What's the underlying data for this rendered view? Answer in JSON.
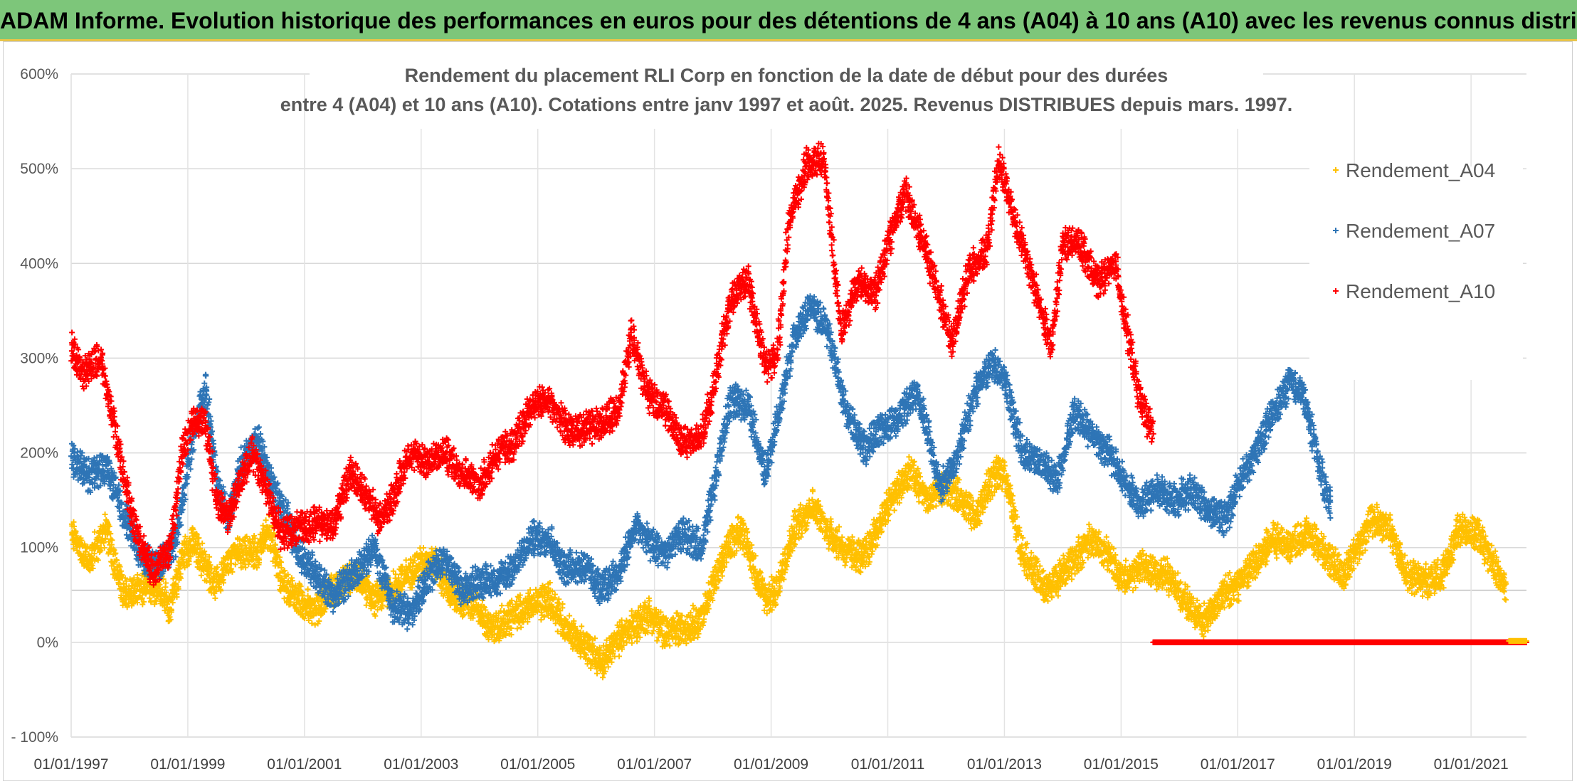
{
  "banner": {
    "title": "ADAM Informe. Evolution historique des performances en euros pour des détentions de 4 ans (A04) à 10 ans (A10) avec les revenus connus distribués"
  },
  "chart_data": {
    "type": "scatter",
    "title_line1": "Rendement du placement RLI Corp en fonction de la date de début pour des durées",
    "title_line2": "entre 4 (A04) et 10 ans (A10). Cotations entre janv 1997 et août. 2025. Revenus DISTRIBUES depuis mars. 1997.",
    "y_tick_labels": [
      "- 100%",
      "0%",
      "100%",
      "200%",
      "300%",
      "400%",
      "500%",
      "600%"
    ],
    "y_tick_values": [
      -100,
      0,
      100,
      200,
      300,
      400,
      500,
      600
    ],
    "ylim": [
      -100,
      600
    ],
    "x_tick_labels": [
      "01/01/1997",
      "01/01/1999",
      "01/01/2001",
      "01/01/2003",
      "01/01/2005",
      "01/01/2007",
      "01/01/2009",
      "01/01/2011",
      "01/01/2013",
      "01/01/2015",
      "01/01/2017",
      "01/01/2019",
      "01/01/2021"
    ],
    "x_tick_years": [
      1997,
      1999,
      2001,
      2003,
      2005,
      2007,
      2009,
      2011,
      2013,
      2015,
      2017,
      2019,
      2021
    ],
    "xlim": [
      1997.0,
      2021.95
    ],
    "grid": true,
    "legend_position": "right",
    "series": [
      {
        "name": "Rendement_A04",
        "color": "#ffc000",
        "marker": "+",
        "x_end": 2021.6,
        "points": [
          [
            1997.0,
            115
          ],
          [
            1997.3,
            85
          ],
          [
            1997.6,
            120
          ],
          [
            1997.9,
            50
          ],
          [
            1998.2,
            55
          ],
          [
            1998.5,
            60
          ],
          [
            1998.7,
            35
          ],
          [
            1998.9,
            90
          ],
          [
            1999.1,
            105
          ],
          [
            1999.3,
            80
          ],
          [
            1999.5,
            60
          ],
          [
            1999.8,
            95
          ],
          [
            2000.2,
            95
          ],
          [
            2000.4,
            120
          ],
          [
            2000.6,
            65
          ],
          [
            2000.9,
            45
          ],
          [
            2001.2,
            35
          ],
          [
            2001.5,
            55
          ],
          [
            2001.9,
            70
          ],
          [
            2002.2,
            45
          ],
          [
            2002.6,
            60
          ],
          [
            2002.9,
            80
          ],
          [
            2003.2,
            90
          ],
          [
            2003.5,
            50
          ],
          [
            2003.9,
            40
          ],
          [
            2004.2,
            15
          ],
          [
            2004.5,
            25
          ],
          [
            2004.9,
            40
          ],
          [
            2005.2,
            45
          ],
          [
            2005.5,
            15
          ],
          [
            2005.8,
            -5
          ],
          [
            2006.1,
            -20
          ],
          [
            2006.4,
            5
          ],
          [
            2006.7,
            20
          ],
          [
            2006.9,
            30
          ],
          [
            2007.2,
            10
          ],
          [
            2007.5,
            15
          ],
          [
            2007.8,
            25
          ],
          [
            2008.0,
            60
          ],
          [
            2008.3,
            105
          ],
          [
            2008.5,
            120
          ],
          [
            2008.7,
            80
          ],
          [
            2008.9,
            45
          ],
          [
            2009.1,
            55
          ],
          [
            2009.4,
            120
          ],
          [
            2009.7,
            145
          ],
          [
            2010.0,
            115
          ],
          [
            2010.3,
            95
          ],
          [
            2010.6,
            90
          ],
          [
            2010.9,
            130
          ],
          [
            2011.1,
            155
          ],
          [
            2011.4,
            180
          ],
          [
            2011.7,
            150
          ],
          [
            2012.0,
            165
          ],
          [
            2012.3,
            150
          ],
          [
            2012.5,
            130
          ],
          [
            2012.8,
            175
          ],
          [
            2013.0,
            180
          ],
          [
            2013.3,
            95
          ],
          [
            2013.7,
            55
          ],
          [
            2014.1,
            80
          ],
          [
            2014.5,
            110
          ],
          [
            2014.8,
            90
          ],
          [
            2015.0,
            65
          ],
          [
            2015.4,
            80
          ],
          [
            2015.8,
            70
          ],
          [
            2016.1,
            45
          ],
          [
            2016.4,
            20
          ],
          [
            2016.7,
            50
          ],
          [
            2017.0,
            60
          ],
          [
            2017.3,
            85
          ],
          [
            2017.6,
            110
          ],
          [
            2017.9,
            100
          ],
          [
            2018.2,
            115
          ],
          [
            2018.5,
            95
          ],
          [
            2018.8,
            70
          ],
          [
            2019.0,
            95
          ],
          [
            2019.3,
            130
          ],
          [
            2019.6,
            120
          ],
          [
            2019.9,
            70
          ],
          [
            2020.2,
            65
          ],
          [
            2020.5,
            70
          ],
          [
            2020.8,
            120
          ],
          [
            2021.1,
            115
          ],
          [
            2021.4,
            80
          ],
          [
            2021.6,
            55
          ]
        ]
      },
      {
        "name": "Rendement_A07",
        "color": "#2e75b6",
        "marker": "+",
        "x_end": 2018.6,
        "points": [
          [
            1997.0,
            195
          ],
          [
            1997.3,
            175
          ],
          [
            1997.6,
            185
          ],
          [
            1997.9,
            135
          ],
          [
            1998.2,
            90
          ],
          [
            1998.5,
            80
          ],
          [
            1998.8,
            110
          ],
          [
            1999.1,
            220
          ],
          [
            1999.3,
            270
          ],
          [
            1999.5,
            170
          ],
          [
            1999.7,
            130
          ],
          [
            1999.9,
            190
          ],
          [
            2000.2,
            215
          ],
          [
            2000.4,
            175
          ],
          [
            2000.7,
            130
          ],
          [
            2000.9,
            95
          ],
          [
            2001.2,
            70
          ],
          [
            2001.5,
            50
          ],
          [
            2001.9,
            75
          ],
          [
            2002.2,
            100
          ],
          [
            2002.5,
            40
          ],
          [
            2002.8,
            30
          ],
          [
            2003.1,
            65
          ],
          [
            2003.4,
            90
          ],
          [
            2003.7,
            55
          ],
          [
            2004.0,
            65
          ],
          [
            2004.3,
            65
          ],
          [
            2004.6,
            80
          ],
          [
            2004.9,
            110
          ],
          [
            2005.2,
            110
          ],
          [
            2005.4,
            80
          ],
          [
            2005.8,
            80
          ],
          [
            2006.1,
            55
          ],
          [
            2006.4,
            75
          ],
          [
            2006.7,
            125
          ],
          [
            2006.9,
            105
          ],
          [
            2007.2,
            95
          ],
          [
            2007.5,
            115
          ],
          [
            2007.8,
            100
          ],
          [
            2008.0,
            160
          ],
          [
            2008.3,
            255
          ],
          [
            2008.6,
            250
          ],
          [
            2008.9,
            180
          ],
          [
            2009.1,
            230
          ],
          [
            2009.4,
            325
          ],
          [
            2009.7,
            355
          ],
          [
            2010.0,
            325
          ],
          [
            2010.3,
            240
          ],
          [
            2010.6,
            205
          ],
          [
            2010.9,
            225
          ],
          [
            2011.2,
            240
          ],
          [
            2011.5,
            265
          ],
          [
            2011.7,
            220
          ],
          [
            2011.9,
            160
          ],
          [
            2012.2,
            200
          ],
          [
            2012.5,
            265
          ],
          [
            2012.8,
            295
          ],
          [
            2013.0,
            280
          ],
          [
            2013.3,
            200
          ],
          [
            2013.6,
            190
          ],
          [
            2013.9,
            170
          ],
          [
            2014.2,
            245
          ],
          [
            2014.5,
            220
          ],
          [
            2014.8,
            200
          ],
          [
            2015.0,
            175
          ],
          [
            2015.3,
            145
          ],
          [
            2015.6,
            160
          ],
          [
            2015.9,
            150
          ],
          [
            2016.2,
            160
          ],
          [
            2016.5,
            140
          ],
          [
            2016.8,
            130
          ],
          [
            2017.0,
            165
          ],
          [
            2017.3,
            200
          ],
          [
            2017.6,
            240
          ],
          [
            2017.9,
            275
          ],
          [
            2018.1,
            265
          ],
          [
            2018.3,
            215
          ],
          [
            2018.5,
            160
          ],
          [
            2018.6,
            145
          ]
        ]
      },
      {
        "name": "Rendement_A10",
        "color": "#ff0000",
        "marker": "+",
        "x_end": 2015.55,
        "points": [
          [
            1997.0,
            310
          ],
          [
            1997.2,
            285
          ],
          [
            1997.5,
            300
          ],
          [
            1997.7,
            240
          ],
          [
            1997.9,
            175
          ],
          [
            1998.1,
            120
          ],
          [
            1998.4,
            75
          ],
          [
            1998.7,
            100
          ],
          [
            1998.9,
            200
          ],
          [
            1999.1,
            235
          ],
          [
            1999.3,
            230
          ],
          [
            1999.5,
            150
          ],
          [
            1999.7,
            130
          ],
          [
            1999.9,
            170
          ],
          [
            2000.1,
            200
          ],
          [
            2000.3,
            170
          ],
          [
            2000.6,
            115
          ],
          [
            2000.9,
            120
          ],
          [
            2001.2,
            125
          ],
          [
            2001.5,
            125
          ],
          [
            2001.8,
            180
          ],
          [
            2002.0,
            160
          ],
          [
            2002.3,
            130
          ],
          [
            2002.5,
            150
          ],
          [
            2002.8,
            200
          ],
          [
            2003.1,
            190
          ],
          [
            2003.4,
            200
          ],
          [
            2003.7,
            180
          ],
          [
            2004.0,
            165
          ],
          [
            2004.3,
            200
          ],
          [
            2004.6,
            210
          ],
          [
            2004.9,
            250
          ],
          [
            2005.2,
            255
          ],
          [
            2005.5,
            225
          ],
          [
            2005.8,
            225
          ],
          [
            2006.1,
            230
          ],
          [
            2006.4,
            250
          ],
          [
            2006.6,
            325
          ],
          [
            2006.9,
            260
          ],
          [
            2007.2,
            245
          ],
          [
            2007.5,
            210
          ],
          [
            2007.8,
            215
          ],
          [
            2008.0,
            265
          ],
          [
            2008.3,
            360
          ],
          [
            2008.6,
            385
          ],
          [
            2008.9,
            290
          ],
          [
            2009.1,
            300
          ],
          [
            2009.3,
            440
          ],
          [
            2009.6,
            505
          ],
          [
            2009.9,
            510
          ],
          [
            2010.2,
            330
          ],
          [
            2010.5,
            380
          ],
          [
            2010.8,
            370
          ],
          [
            2011.0,
            420
          ],
          [
            2011.3,
            475
          ],
          [
            2011.6,
            425
          ],
          [
            2011.9,
            360
          ],
          [
            2012.1,
            315
          ],
          [
            2012.4,
            395
          ],
          [
            2012.7,
            415
          ],
          [
            2012.9,
            510
          ],
          [
            2013.2,
            440
          ],
          [
            2013.5,
            380
          ],
          [
            2013.8,
            310
          ],
          [
            2014.0,
            420
          ],
          [
            2014.3,
            420
          ],
          [
            2014.6,
            380
          ],
          [
            2014.9,
            400
          ],
          [
            2015.1,
            330
          ],
          [
            2015.3,
            260
          ],
          [
            2015.55,
            220
          ]
        ]
      }
    ],
    "zero_run": {
      "series": "Rendement_A10",
      "from": 2015.55,
      "to": 2021.95,
      "value": 0
    }
  }
}
